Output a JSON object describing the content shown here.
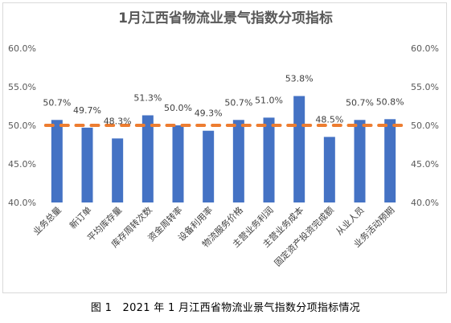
{
  "chart_data": {
    "type": "bar",
    "title": "1月江西省物流业景气指数分项指标",
    "categories": [
      "业务总量",
      "新订单",
      "平均库存量",
      "库存周转次数",
      "资金周转率",
      "设备利用率",
      "物流服务价格",
      "主营业务利润",
      "主营业务成本",
      "固定资产投资完成额",
      "从业人员",
      "业务活动预期"
    ],
    "values": [
      50.7,
      49.7,
      48.3,
      51.3,
      50.0,
      49.3,
      50.7,
      51.0,
      53.8,
      48.5,
      50.7,
      50.8
    ],
    "data_labels": [
      "50.7%",
      "49.7%",
      "48.3%",
      "51.3%",
      "50.0%",
      "49.3%",
      "50.7%",
      "51.0%",
      "53.8%",
      "48.5%",
      "50.7%",
      "50.8%"
    ],
    "reference_line": 50.0,
    "ylim": [
      40,
      60
    ],
    "yticks": [
      "40.0%",
      "45.0%",
      "50.0%",
      "55.0%",
      "60.0%"
    ],
    "bar_color": "#4472c4",
    "reference_color": "#ed7d31",
    "grid": false,
    "legend": "none"
  },
  "caption": "图 1　2021 年 1 月江西省物流业景气指数分项指标情况"
}
